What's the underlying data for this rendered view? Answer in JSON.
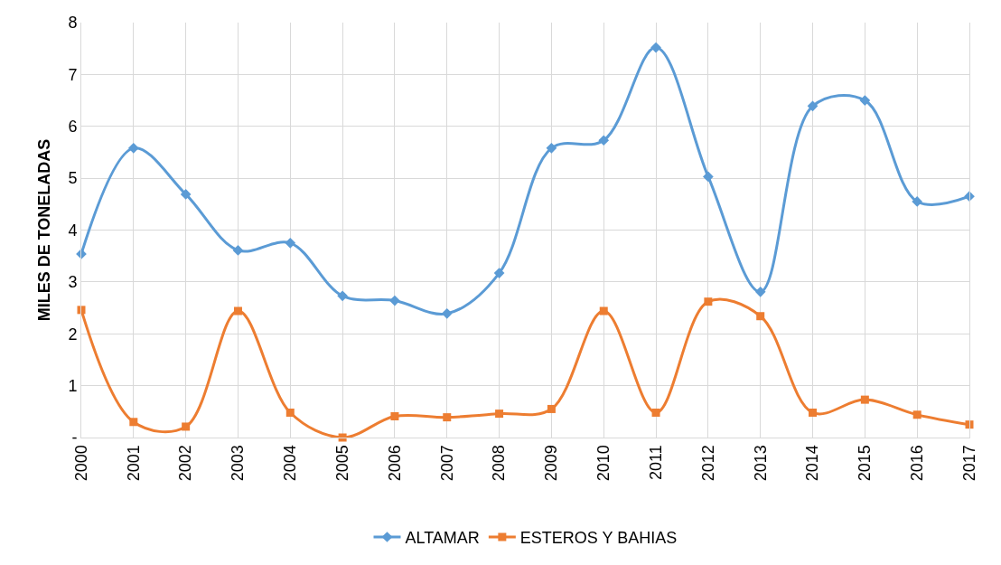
{
  "chart_data": {
    "type": "line",
    "ylabel": "MILES DE TONELADAS",
    "categories": [
      "2000",
      "2001",
      "2002",
      "2003",
      "2004",
      "2005",
      "2006",
      "2007",
      "2008",
      "2009",
      "2010",
      "2011",
      "2012",
      "2013",
      "2014",
      "2015",
      "2016",
      "2017"
    ],
    "series": [
      {
        "name": "ALTAMAR",
        "color": "#5b9bd5",
        "marker": "diamond",
        "values": [
          3.54,
          5.58,
          4.69,
          3.61,
          3.75,
          2.73,
          2.64,
          2.39,
          3.17,
          5.58,
          5.73,
          7.52,
          5.03,
          2.81,
          6.39,
          6.5,
          4.55,
          4.65
        ]
      },
      {
        "name": "ESTEROS Y BAHIAS",
        "color": "#ed7d31",
        "marker": "square",
        "values": [
          2.46,
          0.3,
          0.21,
          2.44,
          0.48,
          0,
          0.41,
          0.39,
          0.46,
          0.55,
          2.44,
          0.48,
          2.62,
          2.34,
          0.48,
          0.73,
          0.44,
          0.25
        ]
      }
    ],
    "ylim": [
      0,
      8
    ],
    "yticks": [
      {
        "value": 0,
        "label": "-"
      },
      1,
      2,
      3,
      4,
      5,
      6,
      7,
      8
    ],
    "grid": true,
    "legend": "bottom",
    "line_style": "solid"
  }
}
